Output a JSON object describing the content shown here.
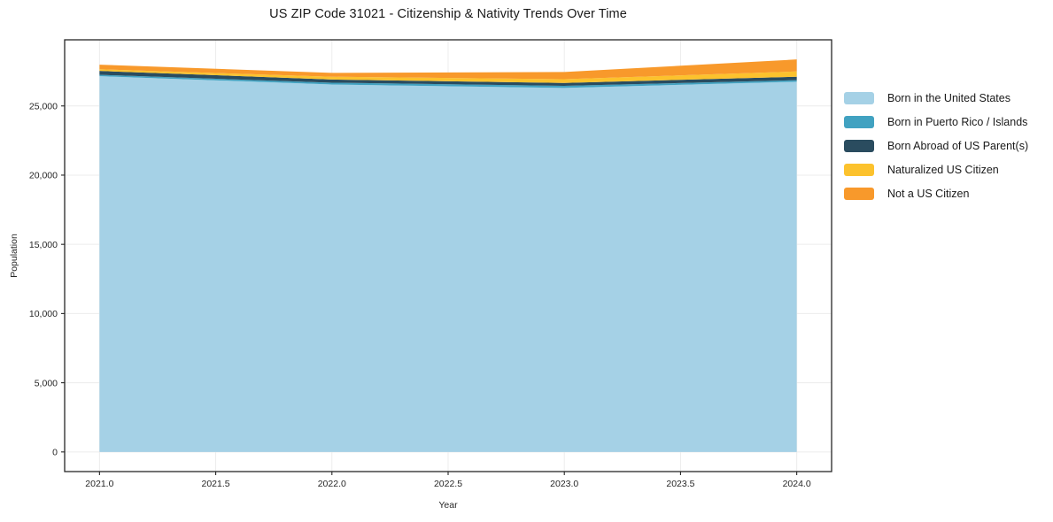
{
  "chart_data": {
    "type": "area",
    "stacked": true,
    "title": "US ZIP Code 31021 - Citizenship & Nativity Trends Over Time",
    "xlabel": "Year",
    "ylabel": "Population",
    "x": [
      2021,
      2022,
      2023,
      2024
    ],
    "series": [
      {
        "name": "Born in the United States",
        "color": "#a5d1e6",
        "values": [
          27150,
          26550,
          26300,
          26750
        ]
      },
      {
        "name": "Born in Puerto Rico / Islands",
        "color": "#41a2c1",
        "values": [
          100,
          130,
          150,
          110
        ]
      },
      {
        "name": "Born Abroad of US Parent(s)",
        "color": "#2a4c5f",
        "values": [
          280,
          230,
          210,
          250
        ]
      },
      {
        "name": "Naturalized US Citizen",
        "color": "#fcc22d",
        "values": [
          120,
          200,
          270,
          380
        ]
      },
      {
        "name": "Not a US Citizen",
        "color": "#f8992b",
        "values": [
          330,
          280,
          520,
          870
        ]
      }
    ],
    "xticks": [
      2021.0,
      2021.5,
      2022.0,
      2022.5,
      2023.0,
      2023.5,
      2024.0
    ],
    "xtick_labels": [
      "2021.0",
      "2021.5",
      "2022.0",
      "2022.5",
      "2023.0",
      "2023.5",
      "2024.0"
    ],
    "yticks": [
      0,
      5000,
      10000,
      15000,
      20000,
      25000
    ],
    "ytick_labels": [
      "0",
      "5,000",
      "10,000",
      "15,000",
      "20,000",
      "25,000"
    ],
    "xlim": [
      2020.85,
      2024.15
    ],
    "ylim": [
      -1418,
      29778
    ],
    "grid": true,
    "grid_color": "#ececec",
    "axis_color": "#262626",
    "legend_position": "right-outside"
  }
}
